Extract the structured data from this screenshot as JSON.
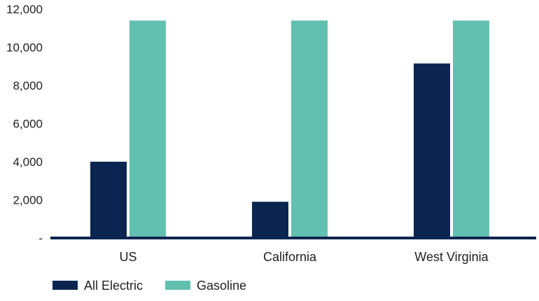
{
  "chart_data": {
    "type": "bar",
    "categories": [
      "US",
      "California",
      "West Virginia"
    ],
    "series": [
      {
        "name": "All Electric",
        "color": "#0b2550",
        "values": [
          4000,
          1900,
          9150
        ]
      },
      {
        "name": "Gasoline",
        "color": "#62c0b0",
        "values": [
          11400,
          11400,
          11400
        ]
      }
    ],
    "ylim": [
      0,
      12000
    ],
    "yticks": [
      {
        "value": 0,
        "label": "-"
      },
      {
        "value": 2000,
        "label": "2,000"
      },
      {
        "value": 4000,
        "label": "4,000"
      },
      {
        "value": 6000,
        "label": "6,000"
      },
      {
        "value": 8000,
        "label": "8,000"
      },
      {
        "value": 10000,
        "label": "10,000"
      },
      {
        "value": 12000,
        "label": "12,000"
      }
    ],
    "grid": false,
    "legend_position": "bottom-left",
    "axis_color": "#0b2550"
  }
}
